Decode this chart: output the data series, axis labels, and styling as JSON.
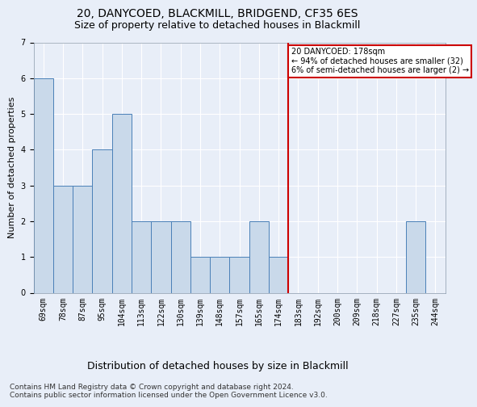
{
  "title": "20, DANYCOED, BLACKMILL, BRIDGEND, CF35 6ES",
  "subtitle": "Size of property relative to detached houses in Blackmill",
  "xlabel": "Distribution of detached houses by size in Blackmill",
  "ylabel": "Number of detached properties",
  "footer1": "Contains HM Land Registry data © Crown copyright and database right 2024.",
  "footer2": "Contains public sector information licensed under the Open Government Licence v3.0.",
  "bin_labels": [
    "69sqm",
    "78sqm",
    "87sqm",
    "95sqm",
    "104sqm",
    "113sqm",
    "122sqm",
    "130sqm",
    "139sqm",
    "148sqm",
    "157sqm",
    "165sqm",
    "174sqm",
    "183sqm",
    "192sqm",
    "200sqm",
    "209sqm",
    "218sqm",
    "227sqm",
    "235sqm",
    "244sqm"
  ],
  "bar_heights": [
    6,
    3,
    3,
    4,
    5,
    2,
    2,
    2,
    1,
    1,
    1,
    2,
    1,
    0,
    0,
    0,
    0,
    0,
    0,
    2,
    0
  ],
  "bar_color": "#c9d9ea",
  "bar_edgecolor": "#4a80b8",
  "property_line_bin": 12,
  "property_label": "20 DANYCOED: 178sqm",
  "annotation_line1": "← 94% of detached houses are smaller (32)",
  "annotation_line2": "6% of semi-detached houses are larger (2) →",
  "annotation_box_color": "#cc0000",
  "ylim": [
    0,
    7
  ],
  "yticks": [
    0,
    1,
    2,
    3,
    4,
    5,
    6,
    7
  ],
  "background_color": "#e8eef8",
  "grid_color": "#ffffff",
  "title_fontsize": 10,
  "subtitle_fontsize": 9,
  "xlabel_fontsize": 9,
  "ylabel_fontsize": 8,
  "tick_fontsize": 7,
  "footer_fontsize": 6.5
}
